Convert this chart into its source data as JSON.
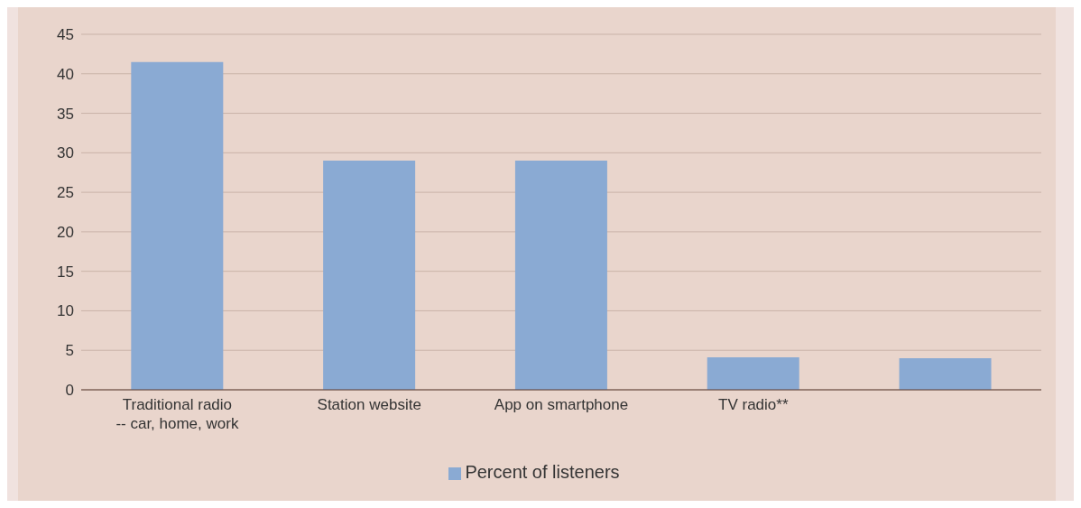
{
  "chart_data": {
    "type": "bar",
    "categories": [
      "Traditional radio -- car, home, work",
      "Station website",
      "App on smartphone",
      "TV radio**",
      null
    ],
    "series": [
      {
        "name": "Percent of listeners",
        "color": "#8aaad3",
        "values": [
          41.5,
          29,
          29,
          4.1,
          4
        ]
      }
    ],
    "ylim": [
      0,
      45
    ],
    "yticks": [
      0,
      5,
      10,
      15,
      20,
      25,
      30,
      35,
      40,
      45
    ],
    "grid": "y",
    "legend": "bottom"
  }
}
